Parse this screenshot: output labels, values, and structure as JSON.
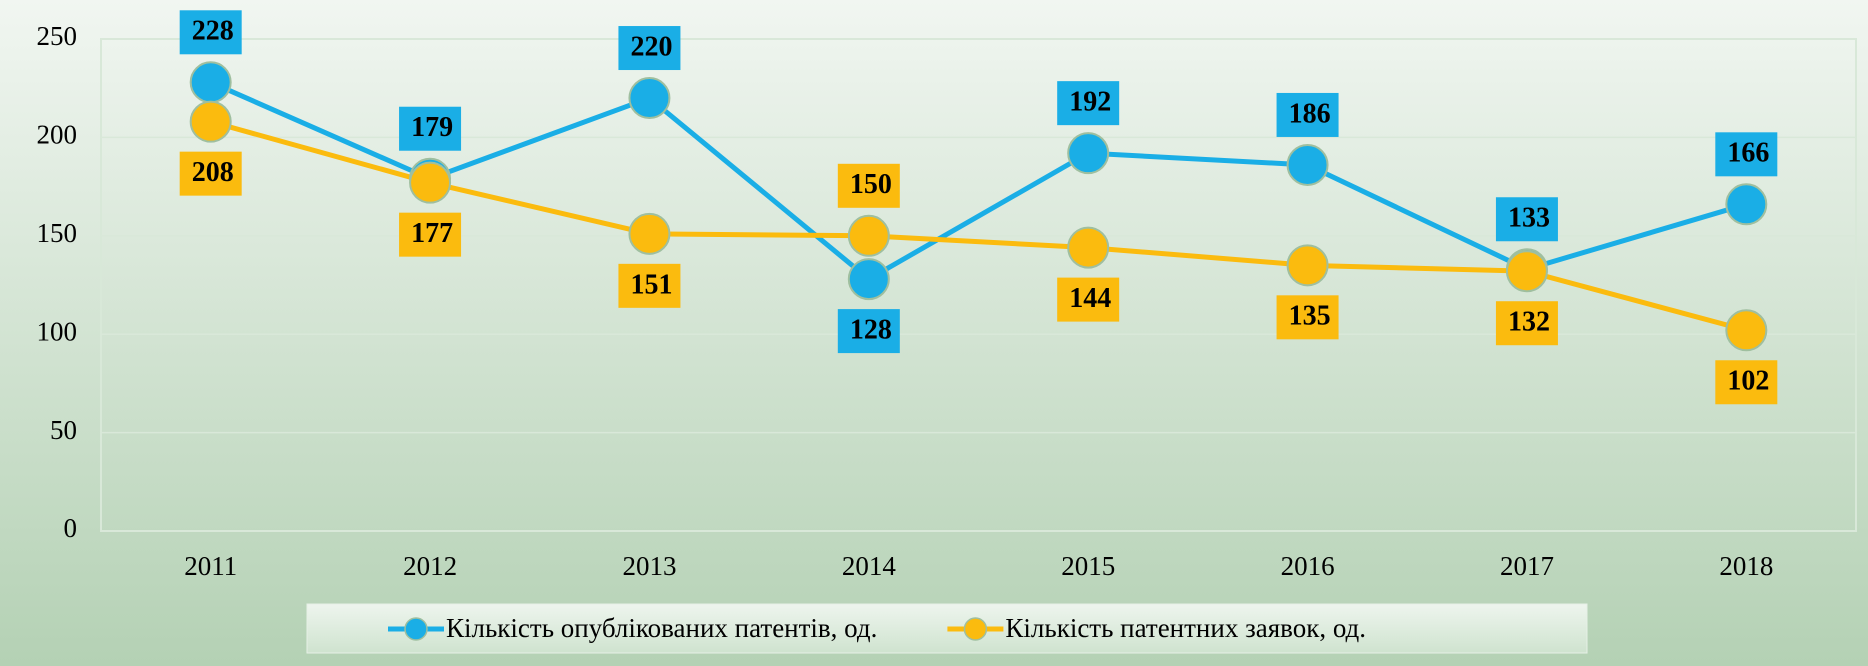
{
  "chart_data": {
    "type": "line",
    "categories": [
      "2011",
      "2012",
      "2013",
      "2014",
      "2015",
      "2016",
      "2017",
      "2018"
    ],
    "series": [
      {
        "name": "Кількість опублікованих патентів, од.",
        "color": "#1aaee6",
        "values": [
          228,
          179,
          220,
          128,
          192,
          186,
          133,
          166
        ]
      },
      {
        "name": "Кількість патентних заявок, од.",
        "color": "#fbbb0e",
        "values": [
          208,
          177,
          151,
          150,
          144,
          135,
          132,
          102
        ]
      }
    ],
    "ylim": [
      0,
      250
    ],
    "yticks": [
      0,
      50,
      100,
      150,
      200,
      250
    ],
    "grid": true,
    "legend": "bottom"
  }
}
